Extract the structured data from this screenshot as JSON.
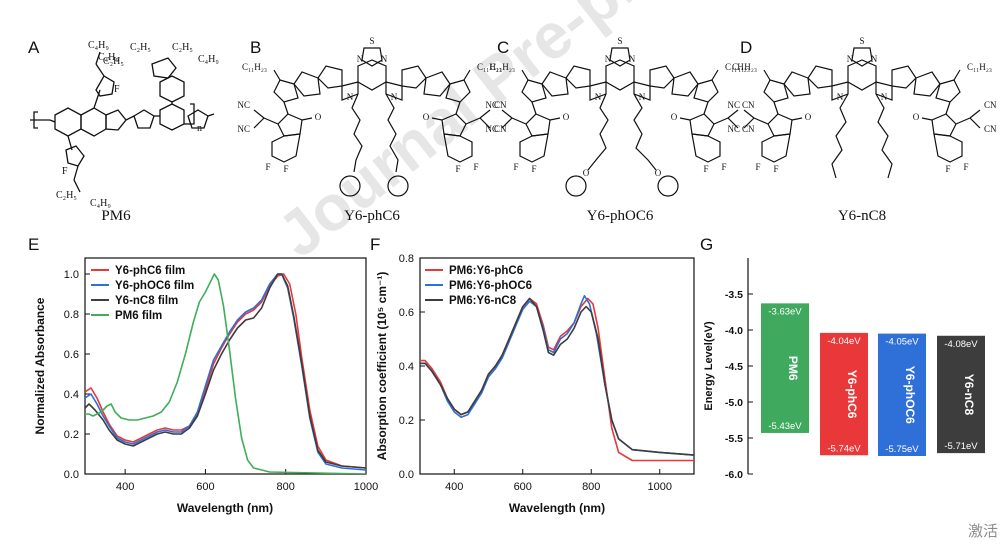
{
  "watermark": "Journal Pre-proof",
  "panels": {
    "A": {
      "letter": "A",
      "name": "PM6"
    },
    "B": {
      "letter": "B",
      "name": "Y6-phC6"
    },
    "C": {
      "letter": "C",
      "name": "Y6-phOC6"
    },
    "D": {
      "letter": "D",
      "name": "Y6-nC8"
    }
  },
  "struct_labels": {
    "c4h9": "C₄H₉",
    "c2h5": "C₂H₅",
    "c11h23": "C₁₁H₂₃",
    "F": "F",
    "S": "S",
    "N": "N",
    "O": "O",
    "CN": "CN",
    "NC": "NC",
    "n": "n"
  },
  "chart_data": [
    {
      "panel": "E",
      "type": "line",
      "xlabel": "Wavelength (nm)",
      "ylabel": "Normalized Absorbance",
      "xlim": [
        300,
        1000
      ],
      "ylim": [
        0,
        1.08
      ],
      "xticks": [
        400,
        600,
        800,
        1000
      ],
      "yticks": [
        0.0,
        0.2,
        0.4,
        0.6,
        0.8,
        1.0
      ],
      "ytick_labels": [
        "0.0",
        "0.2",
        "0.4",
        "0.6",
        "0.8",
        "1.0"
      ],
      "legend_position": "top-left",
      "series": [
        {
          "name": "Y6-phC6 film",
          "color": "#e8383a",
          "points": [
            [
              300,
              0.41
            ],
            [
              315,
              0.43
            ],
            [
              330,
              0.38
            ],
            [
              345,
              0.31
            ],
            [
              360,
              0.25
            ],
            [
              380,
              0.19
            ],
            [
              400,
              0.17
            ],
            [
              420,
              0.16
            ],
            [
              440,
              0.18
            ],
            [
              460,
              0.2
            ],
            [
              480,
              0.22
            ],
            [
              500,
              0.23
            ],
            [
              520,
              0.22
            ],
            [
              540,
              0.22
            ],
            [
              560,
              0.24
            ],
            [
              580,
              0.3
            ],
            [
              600,
              0.42
            ],
            [
              620,
              0.55
            ],
            [
              640,
              0.63
            ],
            [
              660,
              0.7
            ],
            [
              680,
              0.76
            ],
            [
              700,
              0.8
            ],
            [
              720,
              0.82
            ],
            [
              740,
              0.86
            ],
            [
              760,
              0.94
            ],
            [
              780,
              0.99
            ],
            [
              795,
              1.0
            ],
            [
              810,
              0.95
            ],
            [
              825,
              0.8
            ],
            [
              840,
              0.58
            ],
            [
              860,
              0.32
            ],
            [
              880,
              0.14
            ],
            [
              900,
              0.07
            ],
            [
              940,
              0.04
            ],
            [
              1000,
              0.03
            ]
          ]
        },
        {
          "name": "Y6-phOC6 film",
          "color": "#2f6fd8",
          "points": [
            [
              300,
              0.38
            ],
            [
              315,
              0.4
            ],
            [
              330,
              0.35
            ],
            [
              345,
              0.29
            ],
            [
              360,
              0.24
            ],
            [
              380,
              0.18
            ],
            [
              400,
              0.16
            ],
            [
              420,
              0.15
            ],
            [
              440,
              0.17
            ],
            [
              460,
              0.19
            ],
            [
              480,
              0.21
            ],
            [
              500,
              0.22
            ],
            [
              520,
              0.21
            ],
            [
              540,
              0.21
            ],
            [
              560,
              0.24
            ],
            [
              580,
              0.31
            ],
            [
              600,
              0.44
            ],
            [
              620,
              0.57
            ],
            [
              640,
              0.64
            ],
            [
              660,
              0.71
            ],
            [
              680,
              0.77
            ],
            [
              700,
              0.81
            ],
            [
              720,
              0.83
            ],
            [
              740,
              0.87
            ],
            [
              760,
              0.95
            ],
            [
              780,
              1.0
            ],
            [
              790,
              1.0
            ],
            [
              805,
              0.93
            ],
            [
              820,
              0.78
            ],
            [
              840,
              0.54
            ],
            [
              860,
              0.28
            ],
            [
              880,
              0.11
            ],
            [
              900,
              0.05
            ],
            [
              940,
              0.03
            ],
            [
              1000,
              0.02
            ]
          ]
        },
        {
          "name": "Y6-nC8 film",
          "color": "#3d3d3d",
          "points": [
            [
              300,
              0.33
            ],
            [
              310,
              0.35
            ],
            [
              325,
              0.32
            ],
            [
              345,
              0.27
            ],
            [
              360,
              0.22
            ],
            [
              380,
              0.17
            ],
            [
              400,
              0.15
            ],
            [
              420,
              0.14
            ],
            [
              440,
              0.16
            ],
            [
              460,
              0.18
            ],
            [
              480,
              0.2
            ],
            [
              500,
              0.21
            ],
            [
              520,
              0.2
            ],
            [
              540,
              0.2
            ],
            [
              560,
              0.23
            ],
            [
              580,
              0.29
            ],
            [
              600,
              0.4
            ],
            [
              620,
              0.52
            ],
            [
              640,
              0.6
            ],
            [
              660,
              0.67
            ],
            [
              680,
              0.73
            ],
            [
              700,
              0.77
            ],
            [
              720,
              0.78
            ],
            [
              740,
              0.83
            ],
            [
              760,
              0.93
            ],
            [
              780,
              1.0
            ],
            [
              790,
              1.0
            ],
            [
              805,
              0.94
            ],
            [
              820,
              0.79
            ],
            [
              840,
              0.55
            ],
            [
              860,
              0.29
            ],
            [
              880,
              0.12
            ],
            [
              900,
              0.06
            ],
            [
              940,
              0.04
            ],
            [
              1000,
              0.03
            ]
          ]
        },
        {
          "name": "PM6 film",
          "color": "#3fae5a",
          "points": [
            [
              300,
              0.3
            ],
            [
              310,
              0.3
            ],
            [
              320,
              0.29
            ],
            [
              340,
              0.31
            ],
            [
              355,
              0.34
            ],
            [
              365,
              0.35
            ],
            [
              375,
              0.31
            ],
            [
              390,
              0.28
            ],
            [
              410,
              0.27
            ],
            [
              430,
              0.27
            ],
            [
              450,
              0.28
            ],
            [
              470,
              0.29
            ],
            [
              490,
              0.31
            ],
            [
              510,
              0.36
            ],
            [
              530,
              0.46
            ],
            [
              550,
              0.6
            ],
            [
              570,
              0.76
            ],
            [
              585,
              0.86
            ],
            [
              600,
              0.91
            ],
            [
              615,
              0.97
            ],
            [
              622,
              1.0
            ],
            [
              632,
              0.97
            ],
            [
              645,
              0.84
            ],
            [
              660,
              0.62
            ],
            [
              675,
              0.38
            ],
            [
              690,
              0.18
            ],
            [
              705,
              0.07
            ],
            [
              720,
              0.03
            ],
            [
              760,
              0.01
            ],
            [
              1000,
              0.0
            ]
          ]
        }
      ]
    },
    {
      "panel": "F",
      "type": "line",
      "xlabel": "Wavelength (nm)",
      "ylabel": "Absorption coefficient (10⁵ cm⁻¹)",
      "xlim": [
        300,
        1100
      ],
      "ylim": [
        0,
        0.8
      ],
      "xticks": [
        400,
        600,
        800,
        1000
      ],
      "yticks": [
        0.0,
        0.2,
        0.4,
        0.6,
        0.8
      ],
      "ytick_labels": [
        "0.0",
        "0.2",
        "0.4",
        "0.6",
        "0.8"
      ],
      "legend_position": "top-left",
      "series": [
        {
          "name": "PM6:Y6-phC6",
          "color": "#e8383a",
          "points": [
            [
              300,
              0.42
            ],
            [
              315,
              0.42
            ],
            [
              335,
              0.39
            ],
            [
              360,
              0.34
            ],
            [
              380,
              0.28
            ],
            [
              400,
              0.24
            ],
            [
              420,
              0.22
            ],
            [
              440,
              0.23
            ],
            [
              460,
              0.27
            ],
            [
              480,
              0.31
            ],
            [
              500,
              0.37
            ],
            [
              520,
              0.4
            ],
            [
              540,
              0.44
            ],
            [
              560,
              0.5
            ],
            [
              580,
              0.56
            ],
            [
              600,
              0.62
            ],
            [
              620,
              0.65
            ],
            [
              640,
              0.63
            ],
            [
              660,
              0.55
            ],
            [
              675,
              0.47
            ],
            [
              690,
              0.46
            ],
            [
              710,
              0.51
            ],
            [
              730,
              0.53
            ],
            [
              750,
              0.56
            ],
            [
              770,
              0.62
            ],
            [
              790,
              0.65
            ],
            [
              805,
              0.63
            ],
            [
              820,
              0.54
            ],
            [
              840,
              0.35
            ],
            [
              860,
              0.17
            ],
            [
              880,
              0.08
            ],
            [
              920,
              0.05
            ],
            [
              1000,
              0.05
            ],
            [
              1100,
              0.05
            ]
          ]
        },
        {
          "name": "PM6:Y6-phOC6",
          "color": "#2f6fd8",
          "points": [
            [
              300,
              0.41
            ],
            [
              315,
              0.41
            ],
            [
              335,
              0.38
            ],
            [
              360,
              0.33
            ],
            [
              380,
              0.27
            ],
            [
              400,
              0.23
            ],
            [
              420,
              0.21
            ],
            [
              440,
              0.22
            ],
            [
              460,
              0.26
            ],
            [
              480,
              0.3
            ],
            [
              500,
              0.36
            ],
            [
              520,
              0.39
            ],
            [
              540,
              0.43
            ],
            [
              560,
              0.49
            ],
            [
              580,
              0.55
            ],
            [
              600,
              0.61
            ],
            [
              620,
              0.64
            ],
            [
              640,
              0.62
            ],
            [
              660,
              0.54
            ],
            [
              675,
              0.46
            ],
            [
              690,
              0.45
            ],
            [
              710,
              0.5
            ],
            [
              730,
              0.52
            ],
            [
              750,
              0.56
            ],
            [
              770,
              0.63
            ],
            [
              780,
              0.66
            ],
            [
              795,
              0.63
            ],
            [
              815,
              0.52
            ],
            [
              840,
              0.33
            ],
            [
              860,
              0.2
            ],
            [
              880,
              0.13
            ],
            [
              920,
              0.09
            ],
            [
              1000,
              0.08
            ],
            [
              1100,
              0.07
            ]
          ]
        },
        {
          "name": "PM6:Y6-nC8",
          "color": "#3d3d3d",
          "points": [
            [
              300,
              0.41
            ],
            [
              315,
              0.41
            ],
            [
              335,
              0.38
            ],
            [
              360,
              0.33
            ],
            [
              380,
              0.28
            ],
            [
              400,
              0.24
            ],
            [
              420,
              0.22
            ],
            [
              440,
              0.23
            ],
            [
              460,
              0.27
            ],
            [
              480,
              0.31
            ],
            [
              500,
              0.37
            ],
            [
              520,
              0.4
            ],
            [
              540,
              0.44
            ],
            [
              560,
              0.5
            ],
            [
              580,
              0.56
            ],
            [
              600,
              0.62
            ],
            [
              620,
              0.65
            ],
            [
              640,
              0.62
            ],
            [
              660,
              0.53
            ],
            [
              675,
              0.45
            ],
            [
              690,
              0.44
            ],
            [
              710,
              0.48
            ],
            [
              730,
              0.5
            ],
            [
              750,
              0.54
            ],
            [
              770,
              0.6
            ],
            [
              785,
              0.62
            ],
            [
              800,
              0.6
            ],
            [
              820,
              0.5
            ],
            [
              840,
              0.33
            ],
            [
              860,
              0.2
            ],
            [
              880,
              0.13
            ],
            [
              920,
              0.09
            ],
            [
              1000,
              0.08
            ],
            [
              1100,
              0.07
            ]
          ]
        }
      ]
    },
    {
      "panel": "G",
      "type": "bar",
      "ylabel": "Energy Level(eV)",
      "ylim": [
        -6.0,
        -3.0
      ],
      "yticks": [
        -3.5,
        -4.0,
        -4.5,
        -5.0,
        -5.5,
        -6.0
      ],
      "ytick_labels": [
        "-3.5",
        "-4.0",
        "-4.5",
        "-5.0",
        "-5.5",
        "-6.0"
      ],
      "bars": [
        {
          "name": "PM6",
          "lumo": -3.63,
          "homo": -5.43,
          "lumo_label": "-3.63eV",
          "homo_label": "-5.43eV",
          "color": "#3faa5e"
        },
        {
          "name": "Y6-phC6",
          "lumo": -4.04,
          "homo": -5.74,
          "lumo_label": "-4.04eV",
          "homo_label": "-5.74eV",
          "color": "#e8383a"
        },
        {
          "name": "Y6-phOC6",
          "lumo": -4.05,
          "homo": -5.75,
          "lumo_label": "-4.05eV",
          "homo_label": "-5.75eV",
          "color": "#2f6fd8"
        },
        {
          "name": "Y6-nC8",
          "lumo": -4.08,
          "homo": -5.71,
          "lumo_label": "-4.08eV",
          "homo_label": "-5.71eV",
          "color": "#3d3d3d"
        }
      ]
    }
  ],
  "corner_text": "激活"
}
